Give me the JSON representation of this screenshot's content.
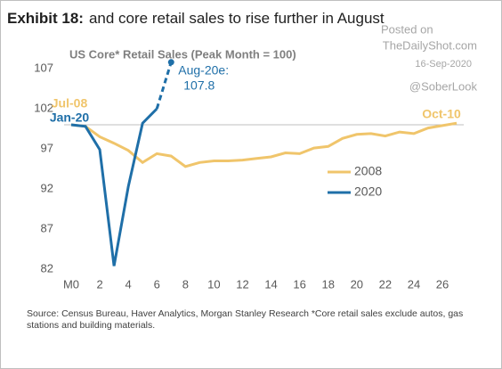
{
  "chart_data": {
    "type": "line",
    "title_prefix": "Exhibit 18:",
    "title": "and core retail sales to rise further in August",
    "subtitle": "US Core* Retail Sales (Peak Month = 100)",
    "watermark": [
      "Posted on",
      "TheDailyShot.com",
      "16-Sep-2020",
      "@SoberLook"
    ],
    "source": [
      "Source: Census Bureau, Haver Analytics, Morgan Stanley Research *Core retail sales exclude autos, gas",
      "stations and building materials."
    ],
    "x": [
      0,
      1,
      2,
      3,
      4,
      5,
      6,
      7,
      8,
      9,
      10,
      11,
      12,
      13,
      14,
      15,
      16,
      17,
      18,
      19,
      20,
      21,
      22,
      23,
      24,
      25,
      26,
      27
    ],
    "series": [
      {
        "name": "2008",
        "color": "#f0c56b",
        "values": [
          100,
          99.8,
          98.5,
          97.7,
          96.8,
          95.3,
          96.4,
          96.1,
          94.8,
          95.3,
          95.5,
          95.5,
          95.6,
          95.8,
          96.0,
          96.5,
          96.4,
          97.1,
          97.3,
          98.3,
          98.8,
          98.9,
          98.6,
          99.1,
          98.9,
          99.6,
          99.9,
          100.2
        ]
      },
      {
        "name": "2020",
        "color": "#1f6fa8",
        "values": [
          100,
          99.8,
          96.9,
          82.4,
          92.3,
          100.2,
          102.0,
          null,
          null,
          null,
          null,
          null,
          null,
          null,
          null,
          null,
          null,
          null,
          null,
          null,
          null,
          null,
          null,
          null,
          null,
          null,
          null,
          null
        ]
      }
    ],
    "estimate": {
      "x": 7,
      "value": 107.8,
      "label": "Aug-20e:"
    },
    "annotations": [
      {
        "text": "Jul-08",
        "series": 0
      },
      {
        "text": "Jan-20",
        "series": 1
      },
      {
        "text": "Oct-10",
        "series": 0
      }
    ],
    "reference_line": 100,
    "xlim": [
      0,
      27.5
    ],
    "xticks": [
      {
        "value": 0,
        "label": "M0"
      },
      2,
      4,
      6,
      8,
      10,
      12,
      14,
      16,
      18,
      20,
      22,
      24,
      26
    ],
    "ylim": [
      81,
      108
    ],
    "yticks": [
      82,
      87,
      92,
      97,
      102,
      107
    ]
  }
}
